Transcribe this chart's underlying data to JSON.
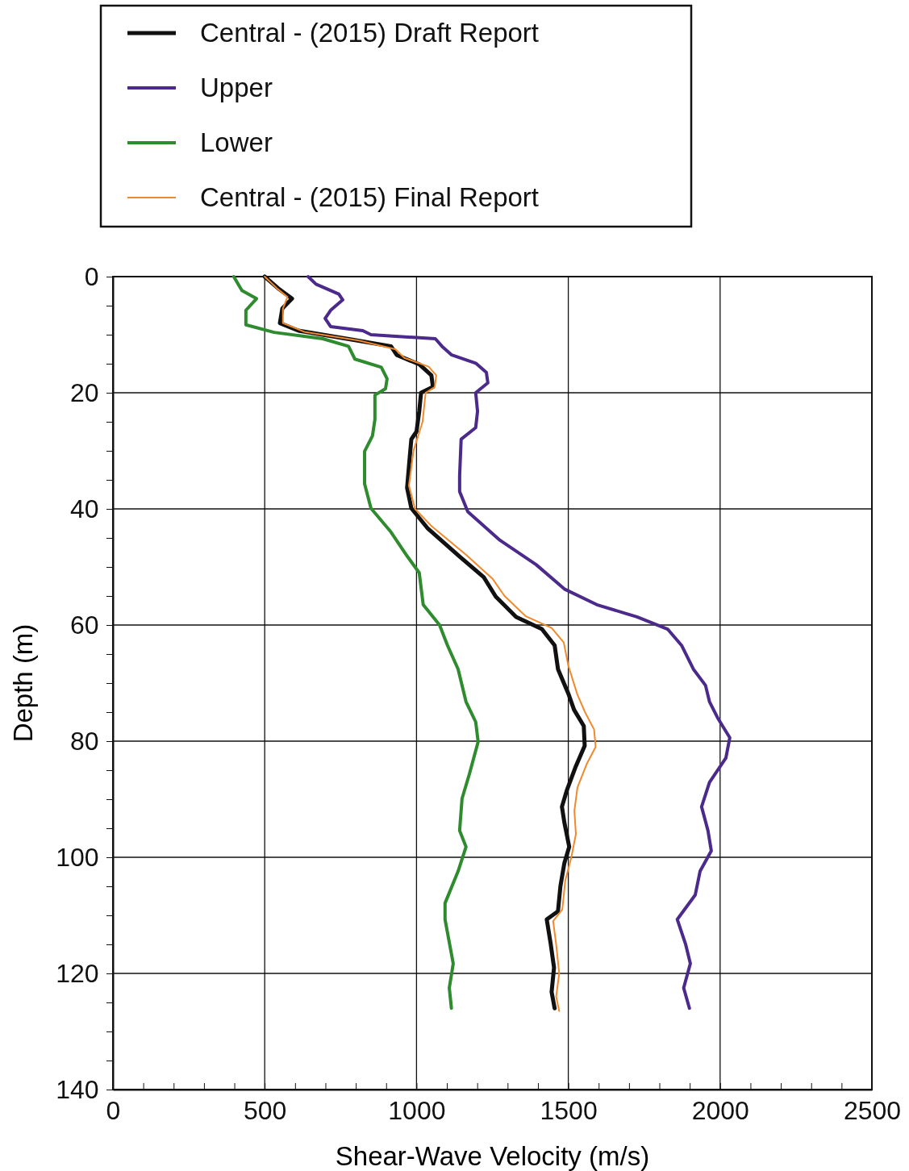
{
  "chart_data": {
    "type": "line",
    "xlabel": "Shear-Wave Velocity (m/s)",
    "ylabel": "Depth (m)",
    "xlim": [
      0,
      2500
    ],
    "ylim": [
      140,
      0
    ],
    "xticks": [
      0,
      {
        "value": 100,
        "label": null
      },
      {
        "value": 200,
        "label": null
      },
      {
        "value": 300,
        "label": null
      },
      {
        "value": 400,
        "label": null
      },
      500,
      {
        "value": 600,
        "label": null
      },
      {
        "value": 700,
        "label": null
      },
      {
        "value": 800,
        "label": null
      },
      {
        "value": 900,
        "label": null
      },
      1000,
      {
        "value": 1100,
        "label": null
      },
      {
        "value": 1200,
        "label": null
      },
      {
        "value": 1300,
        "label": null
      },
      {
        "value": 1400,
        "label": null
      },
      1500,
      {
        "value": 1600,
        "label": null
      },
      {
        "value": 1700,
        "label": null
      },
      {
        "value": 1800,
        "label": null
      },
      {
        "value": 1900,
        "label": null
      },
      2000,
      {
        "value": 2100,
        "label": null
      },
      {
        "value": 2200,
        "label": null
      },
      {
        "value": 2300,
        "label": null
      },
      {
        "value": 2400,
        "label": null
      },
      2500
    ],
    "yticks": [
      0,
      {
        "value": 5,
        "label": null
      },
      {
        "value": 10,
        "label": null
      },
      {
        "value": 15,
        "label": null
      },
      20,
      {
        "value": 25,
        "label": null
      },
      {
        "value": 30,
        "label": null
      },
      {
        "value": 35,
        "label": null
      },
      40,
      {
        "value": 45,
        "label": null
      },
      {
        "value": 50,
        "label": null
      },
      {
        "value": 55,
        "label": null
      },
      60,
      {
        "value": 65,
        "label": null
      },
      {
        "value": 70,
        "label": null
      },
      {
        "value": 75,
        "label": null
      },
      80,
      {
        "value": 85,
        "label": null
      },
      {
        "value": 90,
        "label": null
      },
      {
        "value": 95,
        "label": null
      },
      100,
      {
        "value": 105,
        "label": null
      },
      {
        "value": 110,
        "label": null
      },
      {
        "value": 115,
        "label": null
      },
      120,
      {
        "value": 125,
        "label": null
      },
      {
        "value": 130,
        "label": null
      },
      {
        "value": 135,
        "label": null
      },
      140
    ],
    "grid": true,
    "legend": "top",
    "line_style": "solid",
    "marker": "none",
    "series": [
      {
        "name": "Central - (2015) Draft Report",
        "color": "#111111",
        "x": [
          500,
          544,
          590,
          558,
          550,
          611,
          770,
          916,
          935,
          1009,
          1049,
          1054,
          1015,
          1009,
          1000,
          983,
          977,
          969,
          983,
          1036,
          1142,
          1222,
          1261,
          1328,
          1413,
          1455,
          1466,
          1500,
          1519,
          1551,
          1554,
          1525,
          1495,
          1479,
          1487,
          1503,
          1487,
          1474,
          1466,
          1429,
          1442,
          1453,
          1445,
          1455
        ],
        "values": [
          0,
          2,
          3.8,
          5.5,
          8,
          9.3,
          10.7,
          12,
          13.5,
          15.1,
          17,
          19,
          20,
          23.2,
          26.7,
          28,
          31.5,
          36.4,
          39.9,
          43.3,
          48.2,
          51.8,
          55.1,
          58.6,
          60.7,
          63.5,
          67.6,
          71.8,
          74.6,
          77.4,
          80.8,
          84.3,
          88.5,
          91.3,
          94,
          98.2,
          101,
          105,
          109.3,
          110.7,
          114.9,
          119,
          123.2,
          126
        ]
      },
      {
        "name": "Upper",
        "color": "#4b2a8c",
        "x": [
          643,
          669,
          744,
          757,
          717,
          699,
          717,
          823,
          850,
          1062,
          1084,
          1116,
          1195,
          1230,
          1235,
          1195,
          1201,
          1195,
          1147,
          1142,
          1142,
          1169,
          1275,
          1394,
          1487,
          1594,
          1726,
          1827,
          1873,
          1912,
          1952,
          1965,
          1992,
          2032,
          2019,
          1965,
          1939,
          1960,
          1971,
          1934,
          1918,
          1859,
          1886,
          1902,
          1880,
          1899
        ],
        "values": [
          0,
          1.3,
          3,
          4,
          5.8,
          7.2,
          8.6,
          9.3,
          10,
          10.7,
          12,
          13.5,
          14.9,
          16.5,
          18.3,
          20,
          23.2,
          26,
          28,
          34.3,
          37,
          40.5,
          45.4,
          49.6,
          53.8,
          56.5,
          58.6,
          60.7,
          63.5,
          67.6,
          70.4,
          73.2,
          76,
          79.4,
          82.9,
          87.1,
          91.3,
          95.4,
          98.9,
          102.4,
          106.5,
          110.7,
          114.9,
          118.3,
          122.5,
          126
        ]
      },
      {
        "name": "Lower",
        "color": "#2e8b2e",
        "x": [
          398,
          425,
          473,
          438,
          438,
          531,
          691,
          776,
          797,
          884,
          903,
          898,
          863,
          863,
          855,
          829,
          829,
          850,
          916,
          970,
          1009,
          1022,
          1076,
          1102,
          1137,
          1163,
          1195,
          1203,
          1174,
          1150,
          1142,
          1163,
          1137,
          1094,
          1094,
          1121,
          1108,
          1115
        ],
        "values": [
          0,
          2.4,
          3.8,
          5.8,
          8.3,
          9.6,
          10.7,
          12,
          14.2,
          15.6,
          17.6,
          19.3,
          20.4,
          24.6,
          27.4,
          30.1,
          35.7,
          39.9,
          44,
          48.2,
          51,
          56.5,
          60,
          63.5,
          67.6,
          73.2,
          76.7,
          80.1,
          85.7,
          89.9,
          95.4,
          98.2,
          102.4,
          107.9,
          110.7,
          118.3,
          122.5,
          126
        ]
      },
      {
        "name": "Central - (2015) Final Report",
        "color": "#f08a2c",
        "x": [
          500,
          540,
          575,
          560,
          560,
          630,
          810,
          930,
          960,
          1040,
          1065,
          1060,
          1030,
          1020,
          990,
          975,
          995,
          1050,
          1165,
          1250,
          1290,
          1360,
          1445,
          1485,
          1500,
          1530,
          1555,
          1585,
          1590,
          1560,
          1530,
          1520,
          1525,
          1510,
          1490,
          1480,
          1450,
          1460,
          1470,
          1460,
          1470
        ],
        "values": [
          0,
          2,
          3.5,
          5.5,
          8,
          9.5,
          11,
          12.5,
          14,
          15.5,
          17,
          19,
          20,
          25,
          30,
          36,
          40,
          43,
          48,
          52,
          55,
          58.5,
          60.5,
          63,
          67,
          72,
          75,
          78,
          81,
          84,
          88,
          92,
          96,
          100,
          104,
          109,
          111,
          115,
          120,
          124,
          126.5
        ]
      }
    ]
  }
}
